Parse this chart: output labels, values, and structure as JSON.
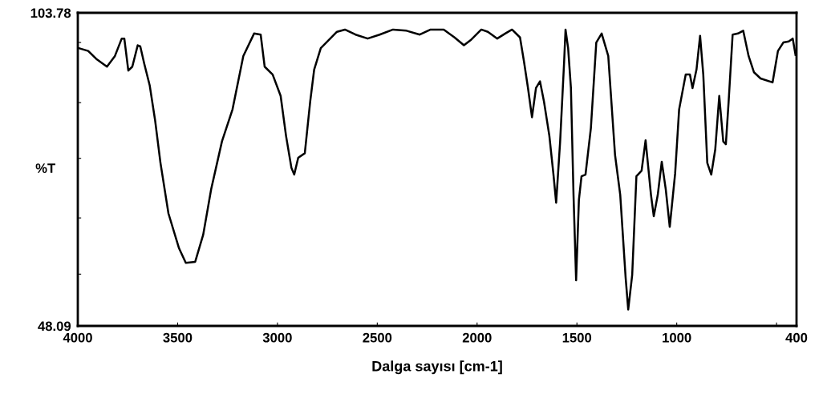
{
  "chart_data": {
    "type": "line",
    "xlabel": "Dalga sayısı [cm-1]",
    "ylabel": "%T",
    "xlim": [
      4000,
      400
    ],
    "ylim": [
      48.09,
      103.78
    ],
    "xticks": [
      4000,
      3500,
      3000,
      2500,
      2000,
      1500,
      1000,
      {
        "value": 500,
        "label": null
      },
      400
    ],
    "yticks": [
      48.09,
      {
        "value": 57.3,
        "label": null
      },
      {
        "value": 67.3,
        "label": null
      },
      {
        "value": 77.9,
        "label": null
      },
      {
        "value": 87.8,
        "label": null
      },
      {
        "value": 98.5,
        "label": null
      },
      103.78
    ],
    "grid": false,
    "marker": "none",
    "line_style": "solid",
    "series": [
      {
        "color": "#000000",
        "x": [
          3995,
          3948,
          3908,
          3854,
          3814,
          3780,
          3767,
          3747,
          3727,
          3700,
          3687,
          3667,
          3640,
          3613,
          3586,
          3546,
          3493,
          3459,
          3412,
          3372,
          3332,
          3278,
          3225,
          3171,
          3117,
          3084,
          3064,
          3024,
          2984,
          2957,
          2930,
          2916,
          2896,
          2863,
          2836,
          2816,
          2783,
          2702,
          2662,
          2609,
          2548,
          2488,
          2421,
          2354,
          2287,
          2233,
          2167,
          2113,
          2066,
          2033,
          1979,
          1946,
          1899,
          1859,
          1825,
          1785,
          1765,
          1745,
          1725,
          1705,
          1685,
          1665,
          1638,
          1618,
          1604,
          1584,
          1564,
          1557,
          1544,
          1530,
          1517,
          1504,
          1490,
          1477,
          1457,
          1430,
          1403,
          1376,
          1343,
          1309,
          1283,
          1256,
          1243,
          1223,
          1202,
          1176,
          1156,
          1129,
          1115,
          1095,
          1075,
          1055,
          1035,
          1008,
          988,
          955,
          934,
          921,
          901,
          883,
          867,
          847,
          827,
          807,
          787,
          767,
          754,
          740,
          720,
          693,
          667,
          640,
          613,
          580,
          520,
          493,
          466,
          439,
          419,
          405
        ],
        "values": [
          97.5,
          97.0,
          95.6,
          94.2,
          96.1,
          99.2,
          99.2,
          93.5,
          94.2,
          98.0,
          97.8,
          94.7,
          90.9,
          84.7,
          77.1,
          68.1,
          61.9,
          59.3,
          59.5,
          64.3,
          72.4,
          80.9,
          86.6,
          96.1,
          100.1,
          99.9,
          94.2,
          92.8,
          89.0,
          81.9,
          76.2,
          75.0,
          78.0,
          78.8,
          88.0,
          93.7,
          97.5,
          100.4,
          100.8,
          99.9,
          99.2,
          99.9,
          100.8,
          100.6,
          99.9,
          100.8,
          100.8,
          99.4,
          98.0,
          98.9,
          100.8,
          100.4,
          99.2,
          100.1,
          100.8,
          99.4,
          95.1,
          90.4,
          85.2,
          90.4,
          91.6,
          88.0,
          81.9,
          75.2,
          70.0,
          80.9,
          95.1,
          100.8,
          97.5,
          90.4,
          71.4,
          56.2,
          70.5,
          74.7,
          75.0,
          83.3,
          98.5,
          100.1,
          96.1,
          78.5,
          71.4,
          56.7,
          51.0,
          57.2,
          74.7,
          75.7,
          81.1,
          71.4,
          67.6,
          71.4,
          77.3,
          72.4,
          65.7,
          75.2,
          86.6,
          92.8,
          92.8,
          90.4,
          93.7,
          99.7,
          92.8,
          77.1,
          75.0,
          79.5,
          89.0,
          80.9,
          80.4,
          88.0,
          99.9,
          100.1,
          100.6,
          96.1,
          93.2,
          92.1,
          91.4,
          97.0,
          98.5,
          98.7,
          99.2,
          96.3
        ]
      }
    ]
  }
}
